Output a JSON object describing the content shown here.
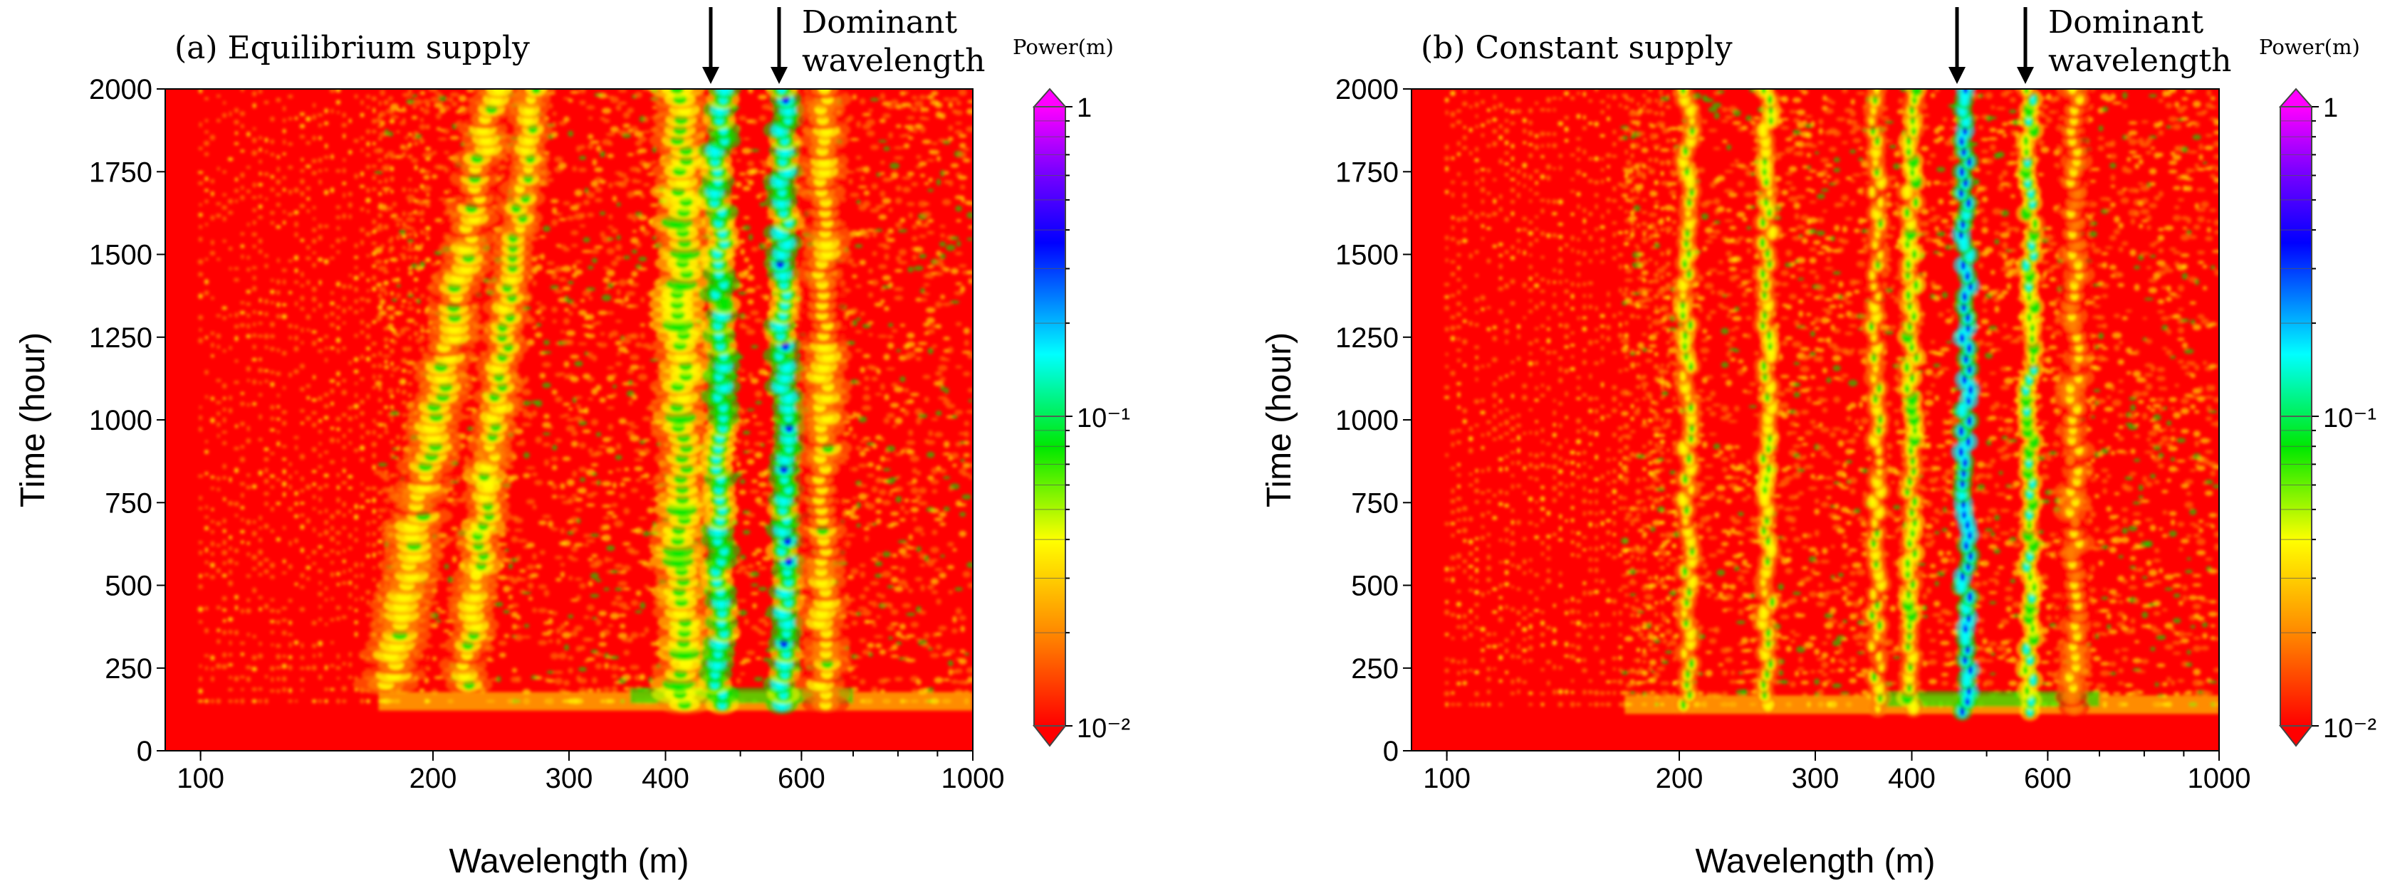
{
  "chart_data": [
    {
      "type": "heatmap",
      "panel": "a",
      "title": "(a) Equilibrium supply",
      "xlabel": "Wavelength (m)",
      "ylabel": "Time (hour)",
      "xscale": "log",
      "xlim": [
        90,
        1000
      ],
      "ylim": [
        0,
        2000
      ],
      "x_ticks": [
        100,
        200,
        300,
        400,
        600,
        1000
      ],
      "x_tick_labels": [
        "100",
        "200",
        "300",
        "400",
        "600",
        "1000"
      ],
      "y_ticks": [
        0,
        250,
        500,
        750,
        1000,
        1250,
        1500,
        1750,
        2000
      ],
      "y_tick_labels": [
        "0",
        "250",
        "500",
        "750",
        "1000",
        "1250",
        "1500",
        "1750",
        "2000"
      ],
      "colorbar": {
        "title": "Power(m)",
        "scale": "log",
        "range": [
          0.01,
          1
        ],
        "tick_labels": [
          "1",
          "10⁻¹",
          "10⁻²"
        ]
      },
      "annotation": "Dominant wavelength",
      "annotation_lines": [
        "Dominant",
        "wavelength"
      ],
      "dominant_wavelengths_m": [
        470,
        570
      ],
      "onset_time_hour": 130,
      "bands": [
        {
          "start_wavelength_m": 175,
          "end_wavelength_m": 240,
          "start_time_hour": 200,
          "end_time_hour": 2000,
          "width_m": 22,
          "peak_power": 0.06
        },
        {
          "start_wavelength_m": 220,
          "end_wavelength_m": 270,
          "start_time_hour": 200,
          "end_time_hour": 2000,
          "width_m": 20,
          "peak_power": 0.07
        },
        {
          "start_wavelength_m": 420,
          "end_wavelength_m": 420,
          "start_time_hour": 140,
          "end_time_hour": 2000,
          "width_m": 45,
          "peak_power": 0.09
        },
        {
          "start_wavelength_m": 470,
          "end_wavelength_m": 470,
          "start_time_hour": 140,
          "end_time_hour": 2000,
          "width_m": 30,
          "peak_power": 0.2
        },
        {
          "start_wavelength_m": 570,
          "end_wavelength_m": 570,
          "start_time_hour": 140,
          "end_time_hour": 2000,
          "width_m": 35,
          "peak_power": 0.22
        },
        {
          "start_wavelength_m": 640,
          "end_wavelength_m": 640,
          "start_time_hour": 140,
          "end_time_hour": 2000,
          "width_m": 60,
          "peak_power": 0.05
        }
      ]
    },
    {
      "type": "heatmap",
      "panel": "b",
      "title": "(b) Constant supply",
      "xlabel": "Wavelength (m)",
      "ylabel": "Time (hour)",
      "xscale": "log",
      "xlim": [
        90,
        1000
      ],
      "ylim": [
        0,
        2000
      ],
      "x_ticks": [
        100,
        200,
        300,
        400,
        600,
        1000
      ],
      "x_tick_labels": [
        "100",
        "200",
        "300",
        "400",
        "600",
        "1000"
      ],
      "y_ticks": [
        0,
        250,
        500,
        750,
        1000,
        1250,
        1500,
        1750,
        2000
      ],
      "y_tick_labels": [
        "0",
        "250",
        "500",
        "750",
        "1000",
        "1250",
        "1500",
        "1750",
        "2000"
      ],
      "colorbar": {
        "title": "Power(m)",
        "scale": "log",
        "range": [
          0.01,
          1
        ],
        "tick_labels": [
          "1",
          "10⁻¹",
          "10⁻²"
        ]
      },
      "annotation": "Dominant wavelength",
      "annotation_lines": [
        "Dominant",
        "wavelength"
      ],
      "dominant_wavelengths_m": [
        470,
        570
      ],
      "onset_time_hour": 120,
      "bands": [
        {
          "start_wavelength_m": 205,
          "end_wavelength_m": 205,
          "start_time_hour": 140,
          "end_time_hour": 2000,
          "width_m": 8,
          "peak_power": 0.07
        },
        {
          "start_wavelength_m": 260,
          "end_wavelength_m": 260,
          "start_time_hour": 140,
          "end_time_hour": 2000,
          "width_m": 10,
          "peak_power": 0.08
        },
        {
          "start_wavelength_m": 360,
          "end_wavelength_m": 360,
          "start_time_hour": 130,
          "end_time_hour": 2000,
          "width_m": 14,
          "peak_power": 0.06
        },
        {
          "start_wavelength_m": 400,
          "end_wavelength_m": 400,
          "start_time_hour": 130,
          "end_time_hour": 2000,
          "width_m": 16,
          "peak_power": 0.09
        },
        {
          "start_wavelength_m": 470,
          "end_wavelength_m": 470,
          "start_time_hour": 120,
          "end_time_hour": 2000,
          "width_m": 18,
          "peak_power": 0.35
        },
        {
          "start_wavelength_m": 570,
          "end_wavelength_m": 570,
          "start_time_hour": 120,
          "end_time_hour": 2000,
          "width_m": 22,
          "peak_power": 0.12
        },
        {
          "start_wavelength_m": 650,
          "end_wavelength_m": 650,
          "start_time_hour": 130,
          "end_time_hour": 2000,
          "width_m": 40,
          "peak_power": 0.04
        }
      ]
    }
  ],
  "colors": {
    "colormap": [
      "#ff0000",
      "#ff8000",
      "#ffff00",
      "#00e800",
      "#00ffff",
      "#0000ff",
      "#8000ff",
      "#ff00ff"
    ],
    "background": "#ff0000",
    "ink": "#000000"
  }
}
